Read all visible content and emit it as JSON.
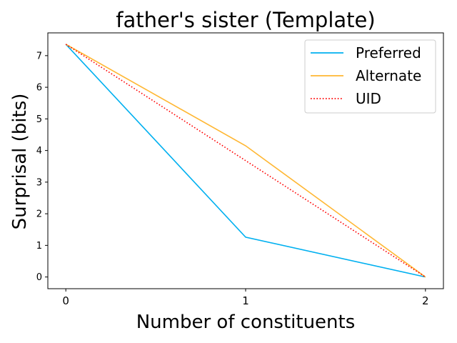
{
  "chart_data": {
    "type": "line",
    "title": "father's sister (Template)",
    "xlabel": "Number of constituents",
    "ylabel": "Surprisal (bits)",
    "x": [
      0,
      1,
      2
    ],
    "x_ticks": [
      "0",
      "1",
      "2"
    ],
    "y_ticks": [
      "0",
      "1",
      "2",
      "3",
      "4",
      "5",
      "6",
      "7"
    ],
    "xlim": [
      -0.1,
      2.1
    ],
    "ylim": [
      -0.37,
      7.72
    ],
    "grid": false,
    "legend_position": "top-right",
    "series": [
      {
        "name": "Preferred",
        "values": [
          7.36,
          1.26,
          0.0
        ],
        "color": "#00b0f0",
        "style": "solid"
      },
      {
        "name": "Alternate",
        "values": [
          7.36,
          4.15,
          0.0
        ],
        "color": "#ffb733",
        "style": "solid"
      },
      {
        "name": "UID",
        "values": [
          7.36,
          3.68,
          0.0
        ],
        "color": "#ff0000",
        "style": "dotted"
      }
    ]
  }
}
